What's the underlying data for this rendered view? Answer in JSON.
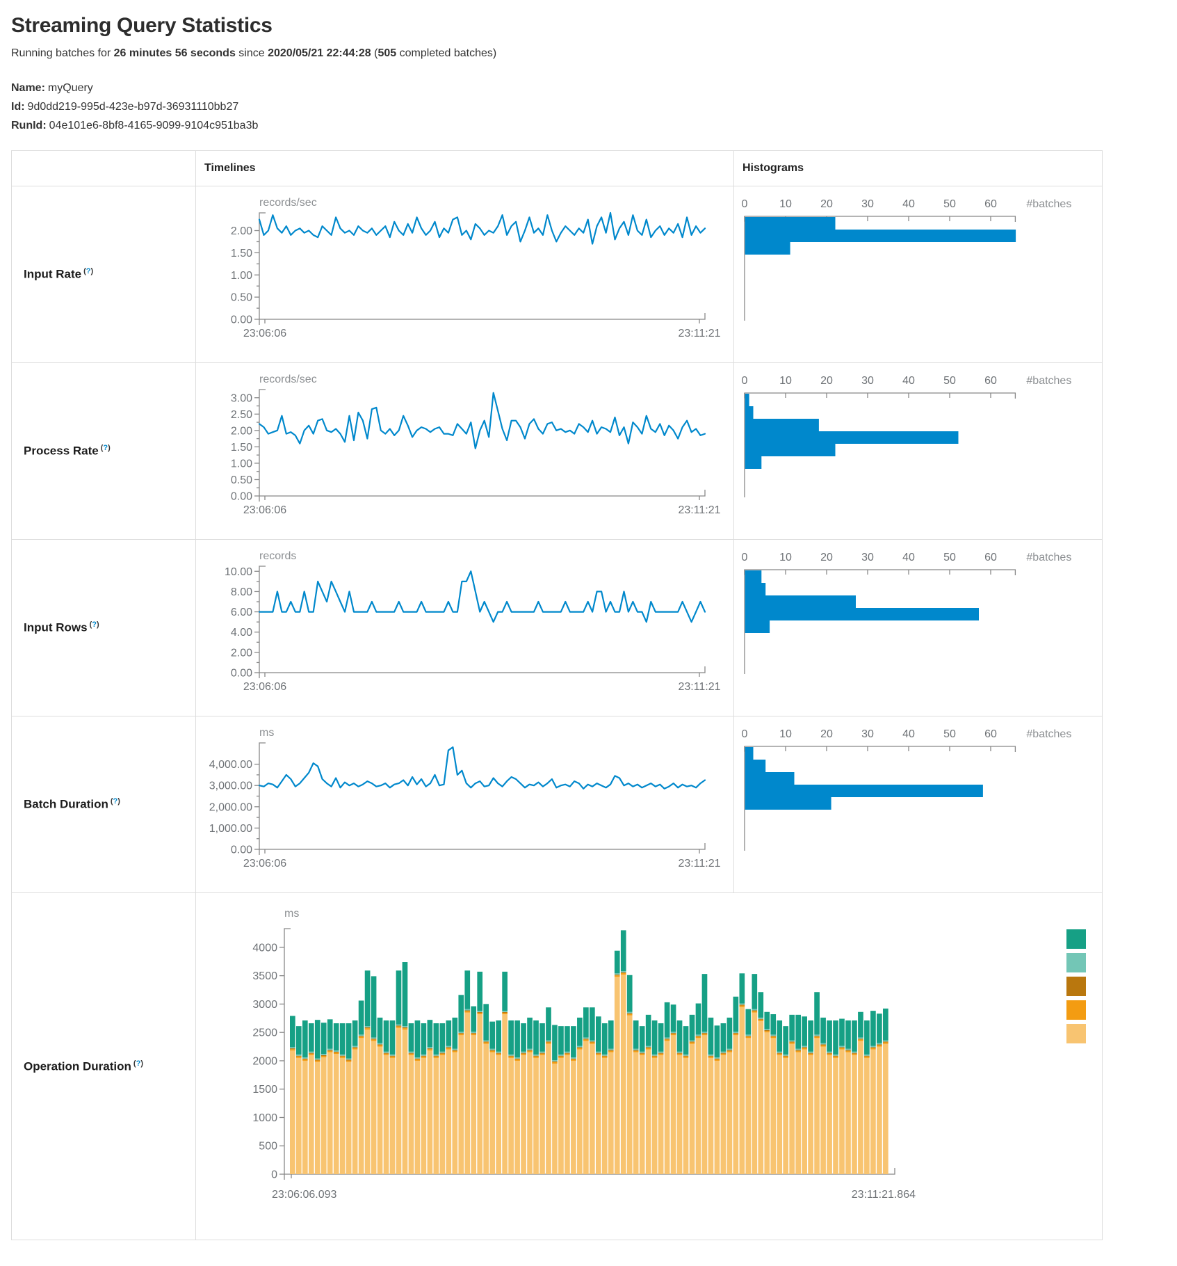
{
  "page": {
    "title": "Streaming Query Statistics",
    "running": {
      "prefix": "Running batches for ",
      "duration": "26 minutes 56 seconds",
      "mid": " since ",
      "since": "2020/05/21 22:44:28",
      "paren": " (",
      "count": "505",
      "suffix": " completed batches)"
    }
  },
  "meta": {
    "name_label": "Name:",
    "name_value": "myQuery",
    "id_label": "Id:",
    "id_value": "9d0dd219-995d-423e-b97d-36931110bb27",
    "runid_label": "RunId:",
    "runid_value": "04e101e6-8bf8-4165-9099-9104c951ba3b"
  },
  "table": {
    "col_timelines": "Timelines",
    "col_histograms": "Histograms"
  },
  "colors": {
    "blue": "#0088cc",
    "axis": "#888888",
    "opdur_stack": [
      "#F8C471",
      "#F39C12",
      "#B9770E",
      "#73C6B6",
      "#16A085"
    ],
    "opdur_legend": [
      "#16A085",
      "#73C6B6",
      "#B9770E",
      "#F39C12",
      "#F8C471"
    ]
  },
  "chart_data": [
    {
      "name": "Input Rate",
      "help": "(?)",
      "timeline": {
        "type": "line",
        "unit": "records/sec",
        "x_start": "23:06:06",
        "x_end": "23:11:21",
        "y_tick_values": [
          2,
          1.5,
          1,
          0.5,
          0
        ],
        "y_tick_labels": [
          "2.00",
          "1.50",
          "1.00",
          "0.50",
          "0.00"
        ],
        "y_minor": 0.25,
        "y_max": 2.4,
        "values": [
          2.25,
          1.9,
          2.0,
          2.35,
          2.05,
          1.95,
          2.1,
          1.9,
          2.0,
          2.05,
          1.95,
          2.0,
          1.9,
          1.85,
          2.1,
          2.0,
          1.9,
          2.3,
          2.05,
          1.95,
          2.0,
          1.9,
          2.1,
          2.0,
          1.95,
          2.05,
          1.9,
          2.0,
          2.1,
          1.85,
          2.2,
          2.0,
          1.9,
          2.15,
          1.95,
          2.3,
          2.05,
          1.9,
          2.0,
          2.2,
          1.85,
          2.05,
          1.95,
          2.25,
          2.3,
          1.9,
          2.0,
          1.8,
          2.15,
          2.05,
          1.9,
          2.0,
          1.95,
          2.1,
          2.35,
          1.9,
          2.1,
          2.2,
          1.75,
          2.0,
          2.3,
          1.95,
          2.05,
          1.9,
          2.35,
          2.0,
          1.75,
          1.95,
          2.1,
          2.0,
          1.9,
          2.05,
          1.95,
          2.25,
          1.7,
          2.1,
          2.3,
          1.95,
          2.4,
          1.8,
          2.05,
          2.2,
          1.9,
          2.35,
          2.0,
          1.9,
          2.25,
          1.85,
          2.0,
          2.1,
          1.9,
          2.05,
          1.95,
          2.15,
          1.85,
          2.3,
          1.9,
          2.1,
          1.95,
          2.05
        ]
      },
      "histogram": {
        "type": "bar",
        "x_label": "#batches",
        "x_tick_values": [
          0,
          10,
          20,
          30,
          40,
          50,
          60
        ],
        "x_tick_labels": [
          "0",
          "10",
          "20",
          "30",
          "40",
          "50",
          "60"
        ],
        "x_axis_max": 66,
        "values": [
          22,
          66,
          11
        ]
      }
    },
    {
      "name": "Process Rate",
      "help": "(?)",
      "timeline": {
        "type": "line",
        "unit": "records/sec",
        "x_start": "23:06:06",
        "x_end": "23:11:21",
        "y_tick_values": [
          3,
          2.5,
          2,
          1.5,
          1,
          0.5,
          0
        ],
        "y_tick_labels": [
          "3.00",
          "2.50",
          "2.00",
          "1.50",
          "1.00",
          "0.50",
          "0.00"
        ],
        "y_minor": 0.25,
        "y_max": 3.25,
        "values": [
          2.2,
          2.1,
          1.9,
          1.95,
          2.0,
          2.45,
          1.9,
          1.95,
          1.85,
          1.6,
          2.0,
          2.15,
          1.9,
          2.3,
          2.35,
          2.0,
          1.95,
          2.05,
          1.9,
          1.65,
          2.45,
          1.7,
          2.55,
          2.3,
          1.75,
          2.65,
          2.7,
          2.0,
          1.9,
          2.05,
          1.85,
          2.0,
          2.45,
          2.15,
          1.8,
          2.0,
          2.1,
          2.05,
          1.95,
          2.05,
          2.1,
          1.9,
          1.9,
          1.85,
          2.2,
          2.05,
          1.9,
          2.25,
          1.45,
          2.0,
          2.3,
          1.8,
          3.15,
          2.6,
          2.05,
          1.7,
          2.3,
          2.3,
          2.1,
          1.75,
          2.2,
          2.35,
          2.05,
          1.9,
          2.2,
          2.25,
          2.0,
          2.05,
          1.95,
          2.0,
          1.9,
          2.2,
          2.1,
          1.95,
          2.3,
          1.9,
          2.1,
          2.05,
          1.95,
          2.4,
          1.85,
          2.1,
          1.6,
          2.25,
          2.1,
          1.9,
          2.45,
          2.05,
          1.95,
          2.2,
          1.85,
          2.15,
          2.0,
          1.75,
          2.1,
          2.3,
          1.95,
          2.05,
          1.85,
          1.9
        ]
      },
      "histogram": {
        "type": "bar",
        "x_label": "#batches",
        "x_tick_values": [
          0,
          10,
          20,
          30,
          40,
          50,
          60
        ],
        "x_tick_labels": [
          "0",
          "10",
          "20",
          "30",
          "40",
          "50",
          "60"
        ],
        "x_axis_max": 66,
        "values": [
          1,
          2,
          18,
          52,
          22,
          4
        ]
      }
    },
    {
      "name": "Input Rows",
      "help": "(?)",
      "timeline": {
        "type": "line",
        "unit": "records",
        "x_start": "23:06:06",
        "x_end": "23:11:21",
        "y_tick_values": [
          10,
          8,
          6,
          4,
          2,
          0
        ],
        "y_tick_labels": [
          "10.00",
          "8.00",
          "6.00",
          "4.00",
          "2.00",
          "0.00"
        ],
        "y_minor": 1,
        "y_max": 10.5,
        "values": [
          6,
          6,
          6,
          6,
          8,
          6,
          6,
          7,
          6,
          6,
          8,
          6,
          6,
          9,
          8,
          7,
          9,
          8,
          7,
          6,
          8,
          6,
          6,
          6,
          6,
          7,
          6,
          6,
          6,
          6,
          6,
          7,
          6,
          6,
          6,
          6,
          7,
          6,
          6,
          6,
          6,
          6,
          7,
          6,
          6,
          9,
          9,
          10,
          8,
          6,
          7,
          6,
          5,
          6,
          6,
          7,
          6,
          6,
          6,
          6,
          6,
          6,
          7,
          6,
          6,
          6,
          6,
          6,
          7,
          6,
          6,
          6,
          6,
          7,
          6,
          8,
          8,
          6,
          7,
          6,
          6,
          8,
          6,
          7,
          6,
          6,
          5,
          7,
          6,
          6,
          6,
          6,
          6,
          6,
          7,
          6,
          5,
          6,
          7,
          6
        ]
      },
      "histogram": {
        "type": "bar",
        "x_label": "#batches",
        "x_tick_values": [
          0,
          10,
          20,
          30,
          40,
          50,
          60
        ],
        "x_tick_labels": [
          "0",
          "10",
          "20",
          "30",
          "40",
          "50",
          "60"
        ],
        "x_axis_max": 66,
        "values": [
          4,
          5,
          27,
          57,
          6
        ]
      }
    },
    {
      "name": "Batch Duration",
      "help": "(?)",
      "timeline": {
        "type": "line",
        "unit": "ms",
        "x_start": "23:06:06",
        "x_end": "23:11:21",
        "y_tick_values": [
          4000,
          3000,
          2000,
          1000,
          0
        ],
        "y_tick_labels": [
          "4,000.00",
          "3,000.00",
          "2,000.00",
          "1,000.00",
          "0.00"
        ],
        "y_minor": 500,
        "y_max": 5000,
        "values": [
          3000,
          2950,
          3100,
          3050,
          2900,
          3200,
          3500,
          3300,
          2950,
          3100,
          3350,
          3600,
          4050,
          3900,
          3300,
          3100,
          2950,
          3350,
          2900,
          3150,
          3000,
          3100,
          2950,
          3050,
          3200,
          3100,
          2950,
          3000,
          3100,
          2900,
          3050,
          3100,
          3250,
          3000,
          3400,
          3050,
          3300,
          2950,
          3100,
          3500,
          3000,
          3050,
          4650,
          4800,
          3500,
          3700,
          3100,
          2900,
          3100,
          3200,
          2950,
          3000,
          3350,
          3100,
          2950,
          3200,
          3400,
          3300,
          3100,
          2900,
          3050,
          3000,
          3150,
          2950,
          3100,
          3300,
          2900,
          3000,
          3050,
          2950,
          3200,
          3100,
          2850,
          3050,
          2950,
          3100,
          3000,
          2900,
          3050,
          3450,
          3350,
          3000,
          3100,
          2950,
          3050,
          2900,
          3000,
          3100,
          2950,
          3050,
          2850,
          2950,
          3100,
          2900,
          3050,
          2950,
          3000,
          2900,
          3100,
          3250
        ]
      },
      "histogram": {
        "type": "bar",
        "x_label": "#batches",
        "x_tick_values": [
          0,
          10,
          20,
          30,
          40,
          50,
          60
        ],
        "x_tick_labels": [
          "0",
          "10",
          "20",
          "30",
          "40",
          "50",
          "60"
        ],
        "x_axis_max": 66,
        "values": [
          2,
          5,
          12,
          58,
          21
        ]
      }
    },
    {
      "name": "Operation Duration",
      "help": "(?)",
      "stacked": {
        "type": "stacked-bar",
        "unit": "ms",
        "x_start": "23:06:06.093",
        "x_end": "23:11:21.864",
        "y_tick_values": [
          0,
          500,
          1000,
          1500,
          2000,
          2500,
          3000,
          3500,
          4000
        ],
        "y_tick_labels": [
          "0",
          "500",
          "1000",
          "1500",
          "2000",
          "2500",
          "3000",
          "3500",
          "4000"
        ],
        "y_max": 4330,
        "slivers": [
          25,
          14,
          22
        ],
        "base": [
          2180,
          2050,
          2000,
          2100,
          1980,
          2060,
          2150,
          2120,
          2050,
          1980,
          2200,
          2400,
          2550,
          2350,
          2250,
          2100,
          2050,
          2580,
          2550,
          2100,
          2000,
          2050,
          2180,
          2050,
          2100,
          2200,
          2150,
          2450,
          2850,
          2450,
          2820,
          2300,
          2150,
          2100,
          2820,
          2050,
          2000,
          2100,
          2150,
          2050,
          2100,
          2300,
          1950,
          2050,
          2100,
          2000,
          2200,
          2350,
          2300,
          2100,
          2050,
          2150,
          3480,
          3520,
          2800,
          2150,
          2100,
          2200,
          2050,
          2100,
          2350,
          2450,
          2100,
          2050,
          2300,
          2400,
          2450,
          2050,
          2000,
          2100,
          2150,
          2450,
          2950,
          2400,
          2850,
          2700,
          2500,
          2400,
          2100,
          2050,
          2300,
          2150,
          2200,
          2100,
          2400,
          2250,
          2100,
          2050,
          2200,
          2150,
          2100,
          2350,
          2050,
          2200,
          2250,
          2300
        ],
        "top": [
          550,
          500,
          650,
          500,
          680,
          550,
          520,
          480,
          550,
          620,
          450,
          600,
          980,
          1080,
          450,
          550,
          600,
          950,
          1130,
          500,
          650,
          550,
          480,
          550,
          500,
          450,
          550,
          650,
          680,
          450,
          690,
          640,
          480,
          550,
          690,
          600,
          650,
          500,
          550,
          600,
          500,
          580,
          620,
          500,
          450,
          550,
          500,
          530,
          580,
          620,
          550,
          500,
          400,
          720,
          650,
          500,
          450,
          550,
          600,
          500,
          620,
          480,
          550,
          500,
          450,
          550,
          1020,
          650,
          560,
          500,
          550,
          620,
          530,
          450,
          620,
          450,
          300,
          360,
          550,
          500,
          450,
          600,
          520,
          550,
          750,
          450,
          550,
          600,
          480,
          500,
          550,
          450,
          600,
          620,
          520,
          560
        ]
      }
    }
  ]
}
